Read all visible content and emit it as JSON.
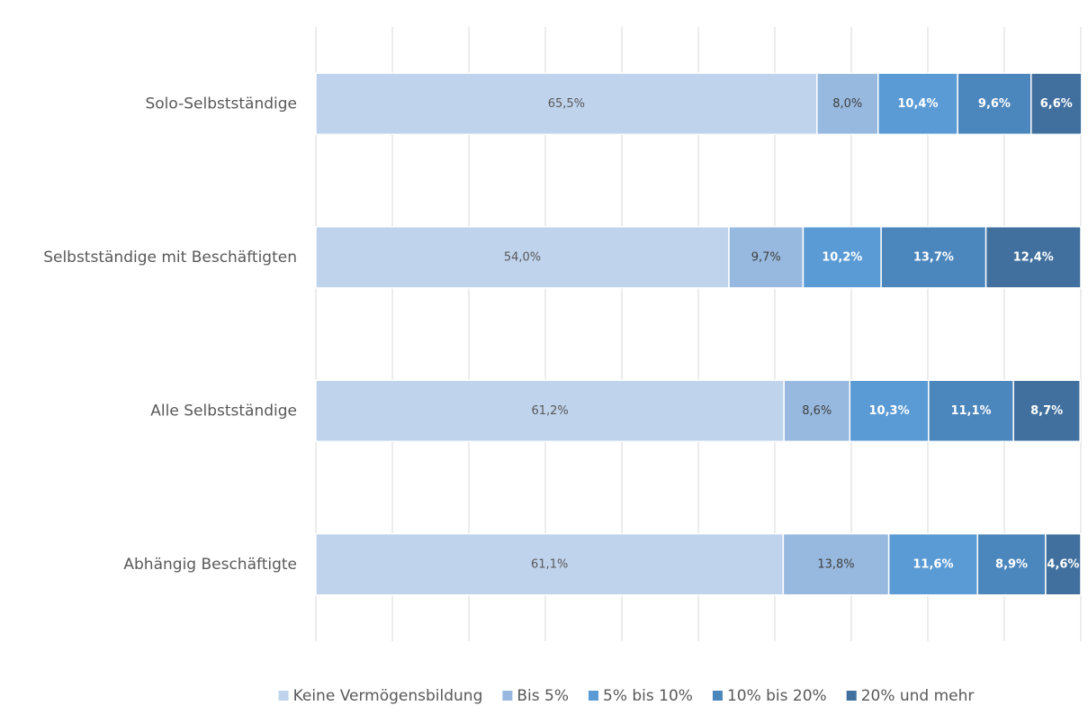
{
  "chart_data": {
    "type": "stacked_barh",
    "categories": [
      "Solo-Selbstständige",
      "Selbstständige mit Beschäftigten",
      "Alle Selbstständige",
      "Abhängig Beschäftigte"
    ],
    "series": [
      {
        "name": "Keine Vermögensbildung",
        "color": "#bfd3ec",
        "label_color": "#595959",
        "values": [
          65.5,
          54.0,
          61.2,
          61.1
        ],
        "value_labels": [
          "65,5%",
          "54,0%",
          "61,2%",
          "61,1%"
        ]
      },
      {
        "name": "Bis 5%",
        "color": "#98b9df",
        "label_color": "#404040",
        "values": [
          8.0,
          9.7,
          8.6,
          13.8
        ],
        "value_labels": [
          "8,0%",
          "9,7%",
          "8,6%",
          "13,8%"
        ]
      },
      {
        "name": "5% bis 10%",
        "color": "#5b9bd5",
        "label_color": "#ffffff",
        "values": [
          10.4,
          10.2,
          10.3,
          11.6
        ],
        "value_labels": [
          "10,4%",
          "10,2%",
          "10,3%",
          "11,6%"
        ]
      },
      {
        "name": "10% bis 20%",
        "color": "#4b86bd",
        "label_color": "#ffffff",
        "values": [
          9.6,
          13.7,
          11.1,
          8.9
        ],
        "value_labels": [
          "9,6%",
          "13,7%",
          "11,1%",
          "8,9%"
        ]
      },
      {
        "name": "20% und mehr",
        "color": "#41709e",
        "label_color": "#ffffff",
        "values": [
          6.6,
          12.4,
          8.7,
          4.6
        ],
        "value_labels": [
          "6,6%",
          "12,4%",
          "8,7%",
          "4,6%"
        ]
      }
    ],
    "xlim": [
      0,
      100
    ],
    "xticks": [
      0,
      10,
      20,
      30,
      40,
      50,
      60,
      70,
      80,
      90,
      100
    ],
    "grid": true,
    "legend": "bottom"
  }
}
